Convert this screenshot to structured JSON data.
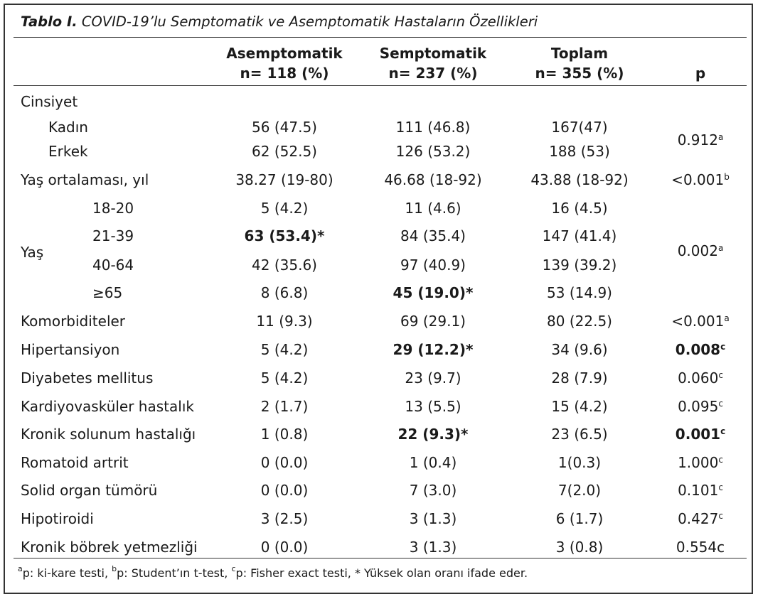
{
  "title": {
    "label": "Tablo I.",
    "text": "COVID-19’lu Semptomatik ve Asemptomatik Hastaların Özellikleri"
  },
  "headers": {
    "asemp_name": "Asemptomatik",
    "asemp_n": "n= 118 (%)",
    "semp_name": "Semptomatik",
    "semp_n": "n= 237 (%)",
    "total_name": "Toplam",
    "total_n": "n= 355 (%)",
    "p": "p"
  },
  "rows": {
    "cinsiyet": "Cinsiyet",
    "kadin": {
      "label": "Kadın",
      "a": "56 (47.5)",
      "s": "111 (46.8)",
      "t": "167(47)"
    },
    "erkek": {
      "label": "Erkek",
      "a": "62 (52.5)",
      "s": "126 (53.2)",
      "t": "188 (53)"
    },
    "cinsiyet_p": {
      "v": "0.912",
      "sup": "a"
    },
    "yas_ort": {
      "label": "Yaş ortalaması, yıl",
      "a": "38.27 (19-80)",
      "s": "46.68 (18-92)",
      "t": "43.88 (18-92)",
      "p": "<0.001",
      "sup": "b"
    },
    "yas": "Yaş",
    "y1820": {
      "label": "18-20",
      "a": "5 (4.2)",
      "s": "11 (4.6)",
      "t": "16 (4.5)"
    },
    "y2139": {
      "label": "21-39",
      "a": "63 (53.4)*",
      "s": "84 (35.4)",
      "t": "147 (41.4)"
    },
    "y4064": {
      "label": "40-64",
      "a": "42 (35.6)",
      "s": "97 (40.9)",
      "t": "139 (39.2)"
    },
    "y65": {
      "label": "≥65",
      "a": "8 (6.8)",
      "s": "45 (19.0)*",
      "t": "53 (14.9)"
    },
    "yas_p": {
      "v": "0.002",
      "sup": "a"
    },
    "komorbid": {
      "label": "Komorbiditeler",
      "a": "11 (9.3)",
      "s": "69 (29.1)",
      "t": "80 (22.5)",
      "p": "<0.001",
      "sup": "a"
    },
    "hipertansiyon": {
      "label": "Hipertansiyon",
      "a": "5 (4.2)",
      "s": "29 (12.2)*",
      "t": "34 (9.6)",
      "p": "0.008",
      "sup": "c"
    },
    "diyabet": {
      "label": "Diyabetes mellitus",
      "a": "5 (4.2)",
      "s": "23 (9.7)",
      "t": "28 (7.9)",
      "p": "0.060",
      "sup": "c"
    },
    "kardiyo": {
      "label": "Kardiyovasküler hastalık",
      "a": "2 (1.7)",
      "s": "13 (5.5)",
      "t": "15 (4.2)",
      "p": "0.095",
      "sup": "c"
    },
    "kronik_sol": {
      "label": "Kronik solunum hastalığı",
      "a": "1 (0.8)",
      "s": "22 (9.3)*",
      "t": "23 (6.5)",
      "p": "0.001",
      "sup": "c"
    },
    "romatoid": {
      "label": "Romatoid artrit",
      "a": "0 (0.0)",
      "s": "1 (0.4)",
      "t": "1(0.3)",
      "p": "1.000",
      "sup": "c"
    },
    "solid": {
      "label": "Solid organ tümörü",
      "a": "0 (0.0)",
      "s": "7 (3.0)",
      "t": "7(2.0)",
      "p": "0.101",
      "sup": "c"
    },
    "hipotiroidi": {
      "label": "Hipotiroidi",
      "a": "3 (2.5)",
      "s": "3 (1.3)",
      "t": "6 (1.7)",
      "p": "0.427",
      "sup": "c"
    },
    "bobrek": {
      "label": "Kronik böbrek yetmezliği",
      "a": "0 (0.0)",
      "s": "3 (1.3)",
      "t": "3 (0.8)",
      "p": "0.554c"
    }
  },
  "footnote": {
    "sa": "a",
    "ta": "p: ki-kare testi, ",
    "sb": "b",
    "tb": "p: Student’ın t-test, ",
    "sc": "c",
    "tc": "p: Fisher exact testi, * Yüksek olan oranı ifade eder."
  }
}
